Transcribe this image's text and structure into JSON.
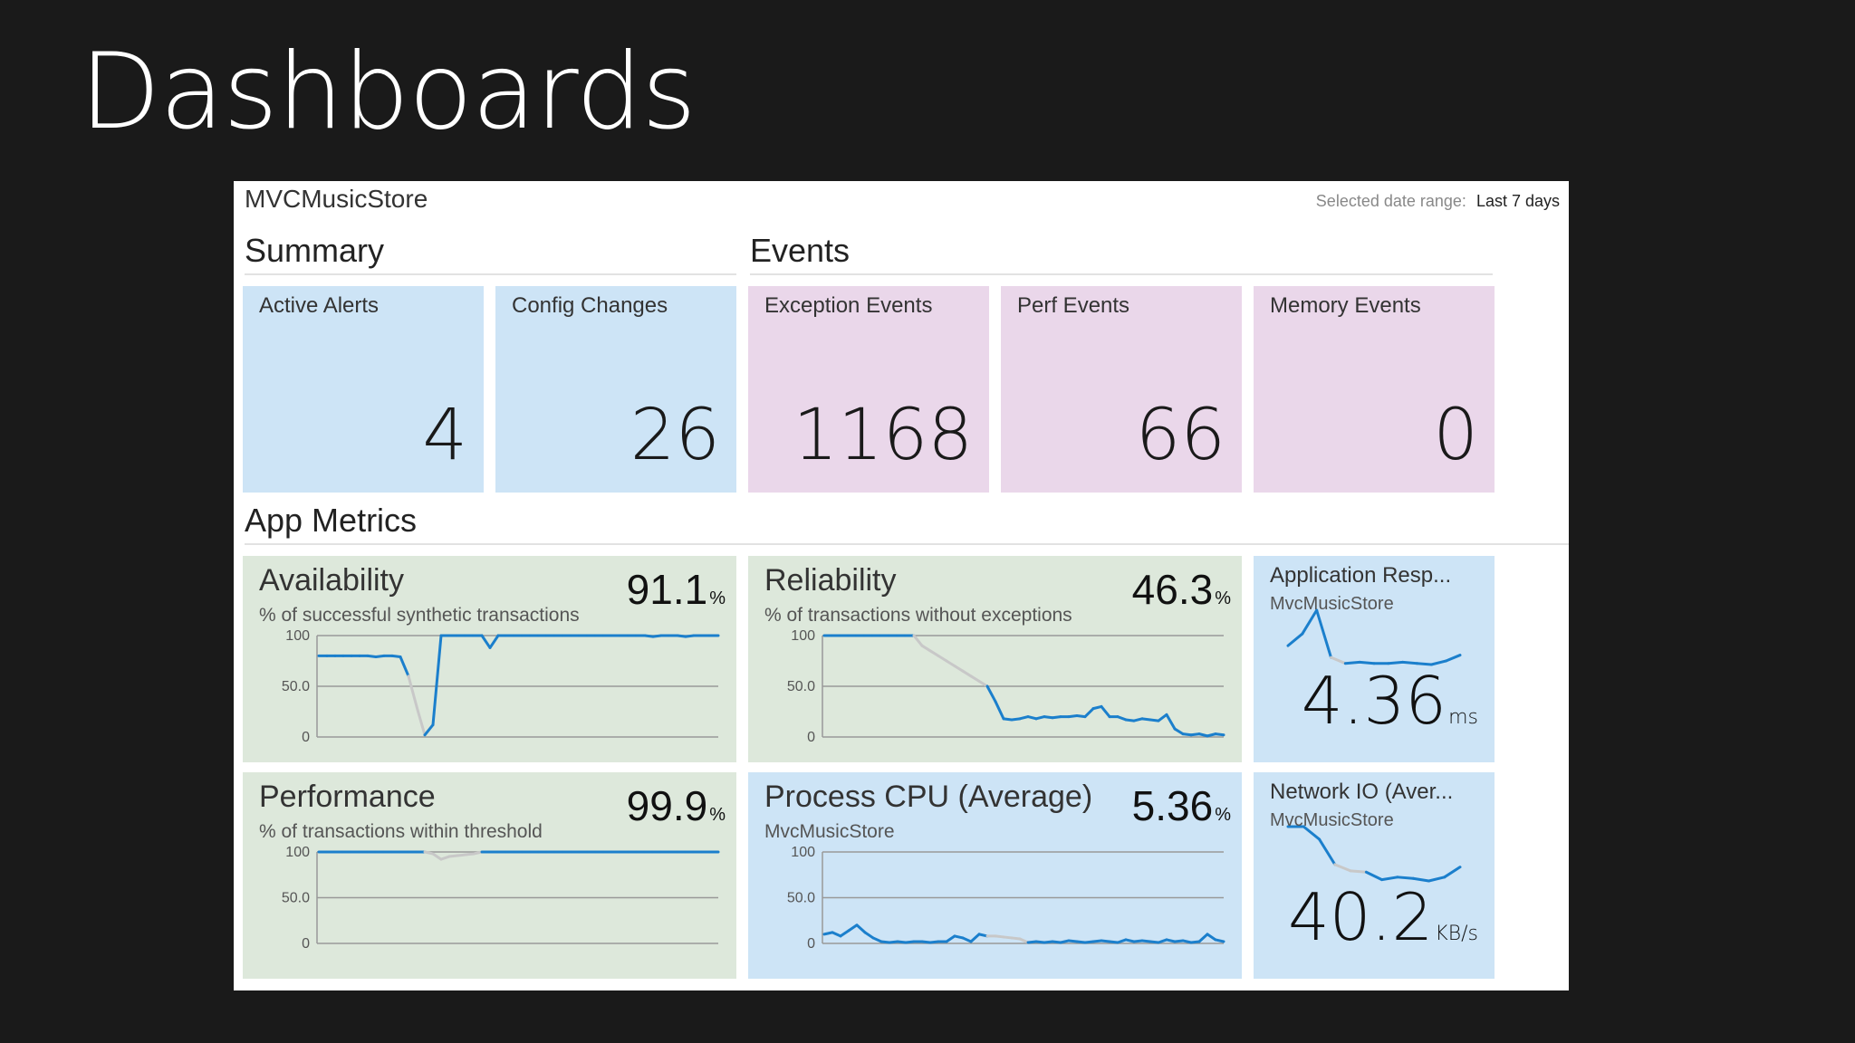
{
  "slide": {
    "title": "Dashboards"
  },
  "dashboard": {
    "app_name": "MVCMusicStore",
    "date_range_label": "Selected date range:",
    "date_range_value": "Last 7 days"
  },
  "sections": {
    "summary": "Summary",
    "events": "Events",
    "app_metrics": "App Metrics"
  },
  "tiles": [
    {
      "label": "Active Alerts",
      "value": "4"
    },
    {
      "label": "Config Changes",
      "value": "26"
    },
    {
      "label": "Exception Events",
      "value": "1168"
    },
    {
      "label": "Perf Events",
      "value": "66"
    },
    {
      "label": "Memory Events",
      "value": "0"
    }
  ],
  "metrics": [
    {
      "title": "Availability",
      "subtitle": "% of successful synthetic transactions",
      "value": "91.1",
      "unit": "%"
    },
    {
      "title": "Reliability",
      "subtitle": "% of transactions without exceptions",
      "value": "46.3",
      "unit": "%"
    },
    {
      "title": "Performance",
      "subtitle": "% of transactions within threshold",
      "value": "99.9",
      "unit": "%"
    },
    {
      "title": "Process CPU (Average)",
      "subtitle": "MvcMusicStore",
      "value": "5.36",
      "unit": "%"
    }
  ],
  "small_tiles": [
    {
      "title": "Application Resp...",
      "subtitle": "MvcMusicStore",
      "value": "4.36",
      "unit": "ms"
    },
    {
      "title": "Network IO (Aver...",
      "subtitle": "MvcMusicStore",
      "value": "40.2",
      "unit": "KB/s"
    }
  ],
  "colors": {
    "summary_tile": "#cde4f6",
    "event_tile": "#ead7ea",
    "metric_tile": "#dde8db",
    "line": "#1b7fcc",
    "gap_line": "#c8c8c8"
  },
  "chart_data": [
    {
      "type": "line",
      "name": "availability",
      "ylim": [
        0,
        100
      ],
      "yticks": [
        "100",
        "50.0",
        "0"
      ],
      "series": [
        {
          "values": [
            80,
            80,
            80,
            80,
            80,
            80,
            80,
            79,
            80,
            80,
            79,
            60,
            30,
            2,
            12,
            100,
            100,
            100,
            100,
            100,
            100,
            88,
            100,
            100,
            100,
            100,
            100,
            100,
            100,
            100,
            100,
            100,
            100,
            100,
            100,
            100,
            100,
            100,
            100,
            100,
            100,
            99,
            100,
            100,
            100,
            99,
            100,
            100,
            100,
            100
          ]
        }
      ],
      "gaps": [
        [
          11,
          13
        ]
      ]
    },
    {
      "type": "line",
      "name": "reliability",
      "ylim": [
        0,
        100
      ],
      "yticks": [
        "100",
        "50.0",
        "0"
      ],
      "series": [
        {
          "values": [
            100,
            100,
            100,
            100,
            100,
            100,
            100,
            100,
            100,
            100,
            100,
            100,
            90,
            85,
            80,
            75,
            70,
            65,
            60,
            55,
            50,
            35,
            18,
            17,
            18,
            20,
            18,
            20,
            19,
            20,
            20,
            21,
            20,
            28,
            30,
            20,
            20,
            17,
            16,
            18,
            17,
            16,
            22,
            8,
            3,
            2,
            3,
            1,
            3,
            2
          ]
        }
      ],
      "gaps": [
        [
          11,
          20
        ]
      ]
    },
    {
      "type": "line",
      "name": "performance",
      "ylim": [
        0,
        100
      ],
      "yticks": [
        "100",
        "50.0",
        "0"
      ],
      "series": [
        {
          "values": [
            100,
            100,
            100,
            100,
            100,
            100,
            100,
            100,
            100,
            100,
            100,
            100,
            100,
            100,
            98,
            92,
            95,
            96,
            97,
            98,
            100,
            100,
            100,
            100,
            100,
            100,
            100,
            100,
            100,
            100,
            100,
            100,
            100,
            100,
            100,
            100,
            100,
            100,
            100,
            100,
            100,
            100,
            100,
            100,
            100,
            100,
            100,
            100,
            100,
            100
          ]
        }
      ],
      "gaps": [
        [
          13,
          20
        ]
      ]
    },
    {
      "type": "line",
      "name": "process-cpu",
      "ylim": [
        0,
        100
      ],
      "yticks": [
        "100",
        "50.0",
        "0"
      ],
      "series": [
        {
          "values": [
            10,
            12,
            8,
            14,
            20,
            12,
            6,
            2,
            1,
            2,
            1,
            2,
            2,
            1,
            2,
            2,
            8,
            6,
            2,
            10,
            8,
            8,
            7,
            6,
            5,
            1,
            2,
            1,
            2,
            1,
            3,
            2,
            1,
            2,
            3,
            2,
            1,
            4,
            2,
            3,
            2,
            1,
            4,
            2,
            3,
            1,
            2,
            10,
            4,
            2
          ]
        }
      ],
      "gaps": [
        [
          20,
          25
        ]
      ]
    },
    {
      "type": "line",
      "name": "application-response",
      "series": [
        {
          "values": [
            40,
            50,
            70,
            30,
            25,
            26,
            25,
            25,
            26,
            25,
            24,
            27,
            32
          ]
        }
      ],
      "gaps": [
        [
          3,
          4
        ]
      ]
    },
    {
      "type": "line",
      "name": "network-io",
      "series": [
        {
          "values": [
            70,
            70,
            60,
            40,
            35,
            34,
            28,
            30,
            29,
            27,
            30,
            38
          ]
        }
      ],
      "gaps": [
        [
          3,
          5
        ]
      ]
    }
  ]
}
